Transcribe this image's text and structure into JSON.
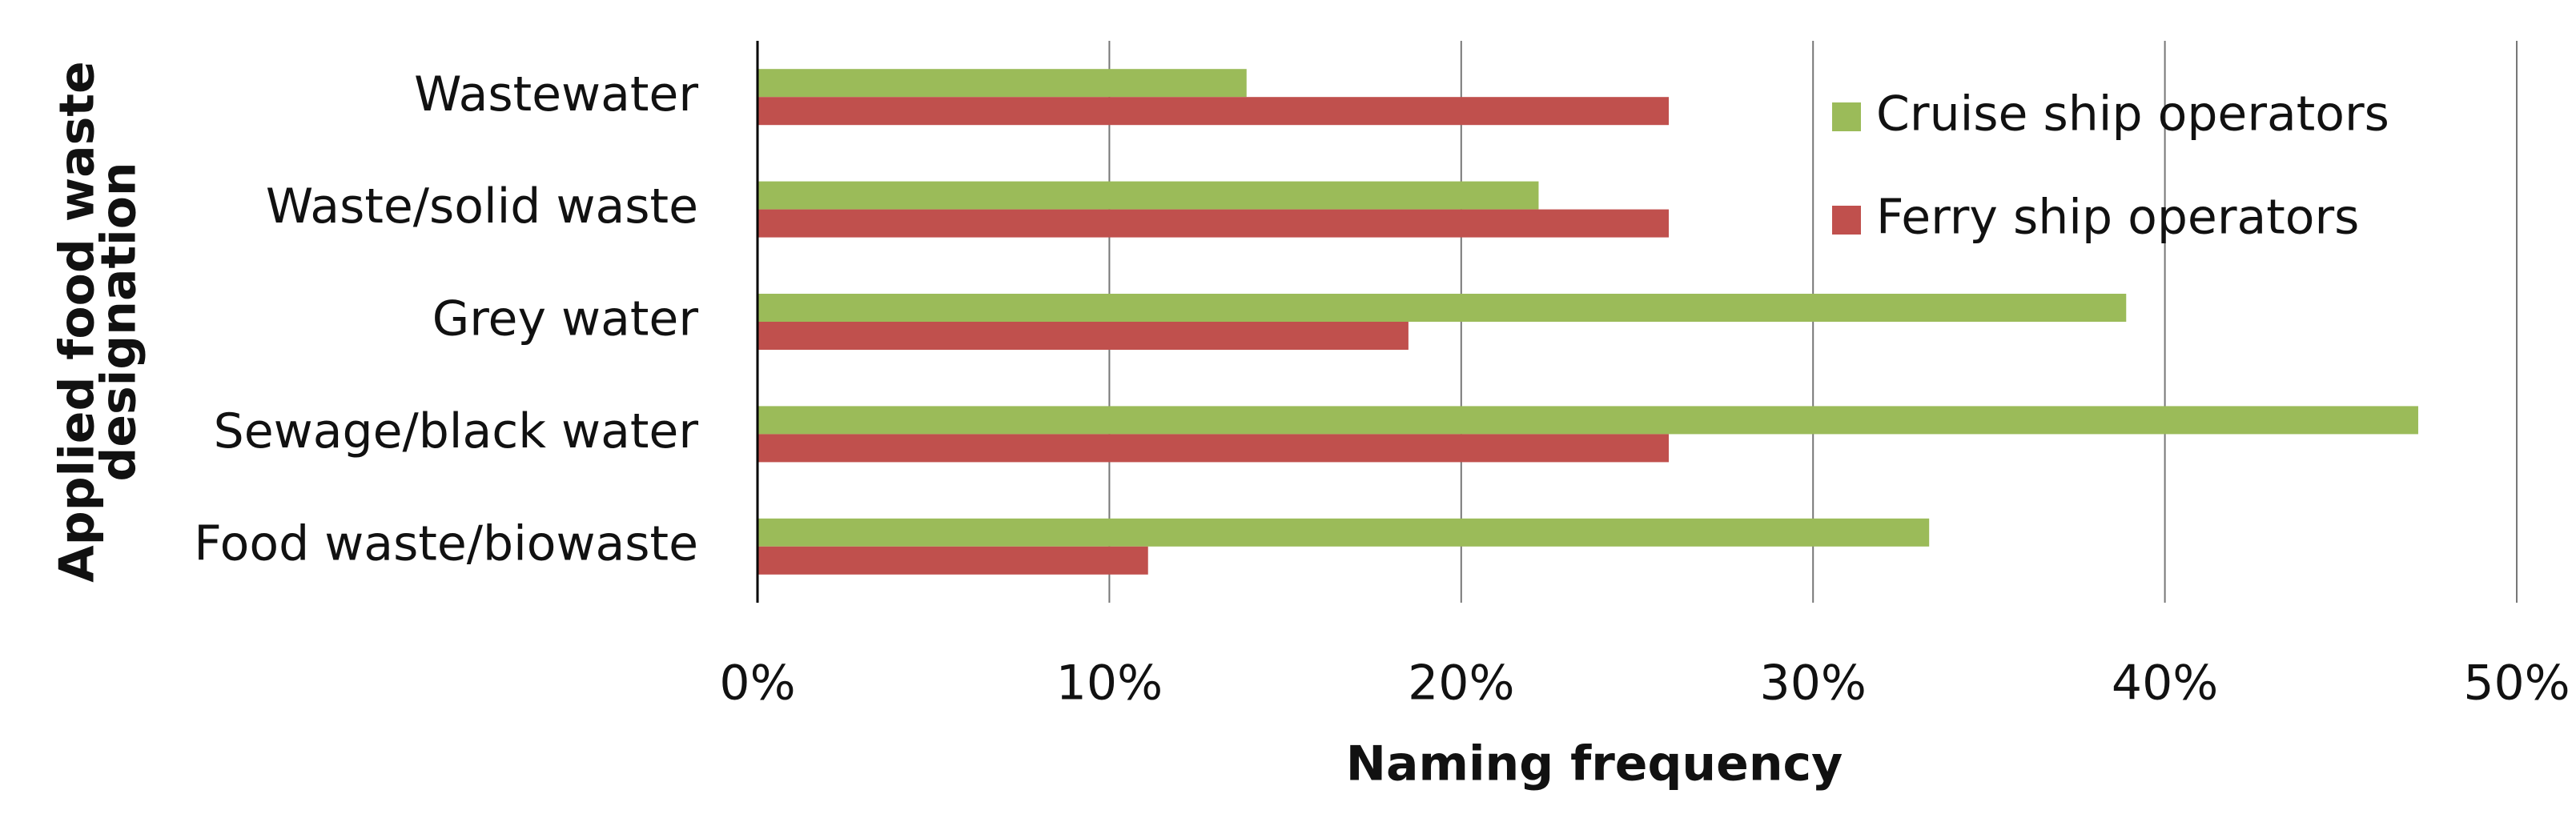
{
  "chart_data": {
    "type": "hbar",
    "x_label": "Naming frequency",
    "y_label": [
      "Applied food waste",
      "designation"
    ],
    "categories": [
      "Wastewater",
      "Waste/solid waste",
      "Grey water",
      "Sewage/black water",
      "Food waste/biowaste"
    ],
    "series": [
      {
        "name": "Cruise ship operators",
        "color": "#9bbb59",
        "values": [
          13.9,
          22.2,
          38.9,
          47.2,
          33.3
        ]
      },
      {
        "name": "Ferry ship operators",
        "color": "#c0504d",
        "values": [
          25.9,
          25.9,
          18.5,
          25.9,
          11.1
        ]
      }
    ],
    "xlim": [
      0,
      50
    ],
    "xticks": [
      {
        "value": 0,
        "label": "0%"
      },
      {
        "value": 10,
        "label": "10%"
      },
      {
        "value": 20,
        "label": "20%"
      },
      {
        "value": 30,
        "label": "30%"
      },
      {
        "value": 40,
        "label": "40%"
      },
      {
        "value": 50,
        "label": "50%"
      }
    ],
    "grid": true,
    "legend": "top-right"
  }
}
